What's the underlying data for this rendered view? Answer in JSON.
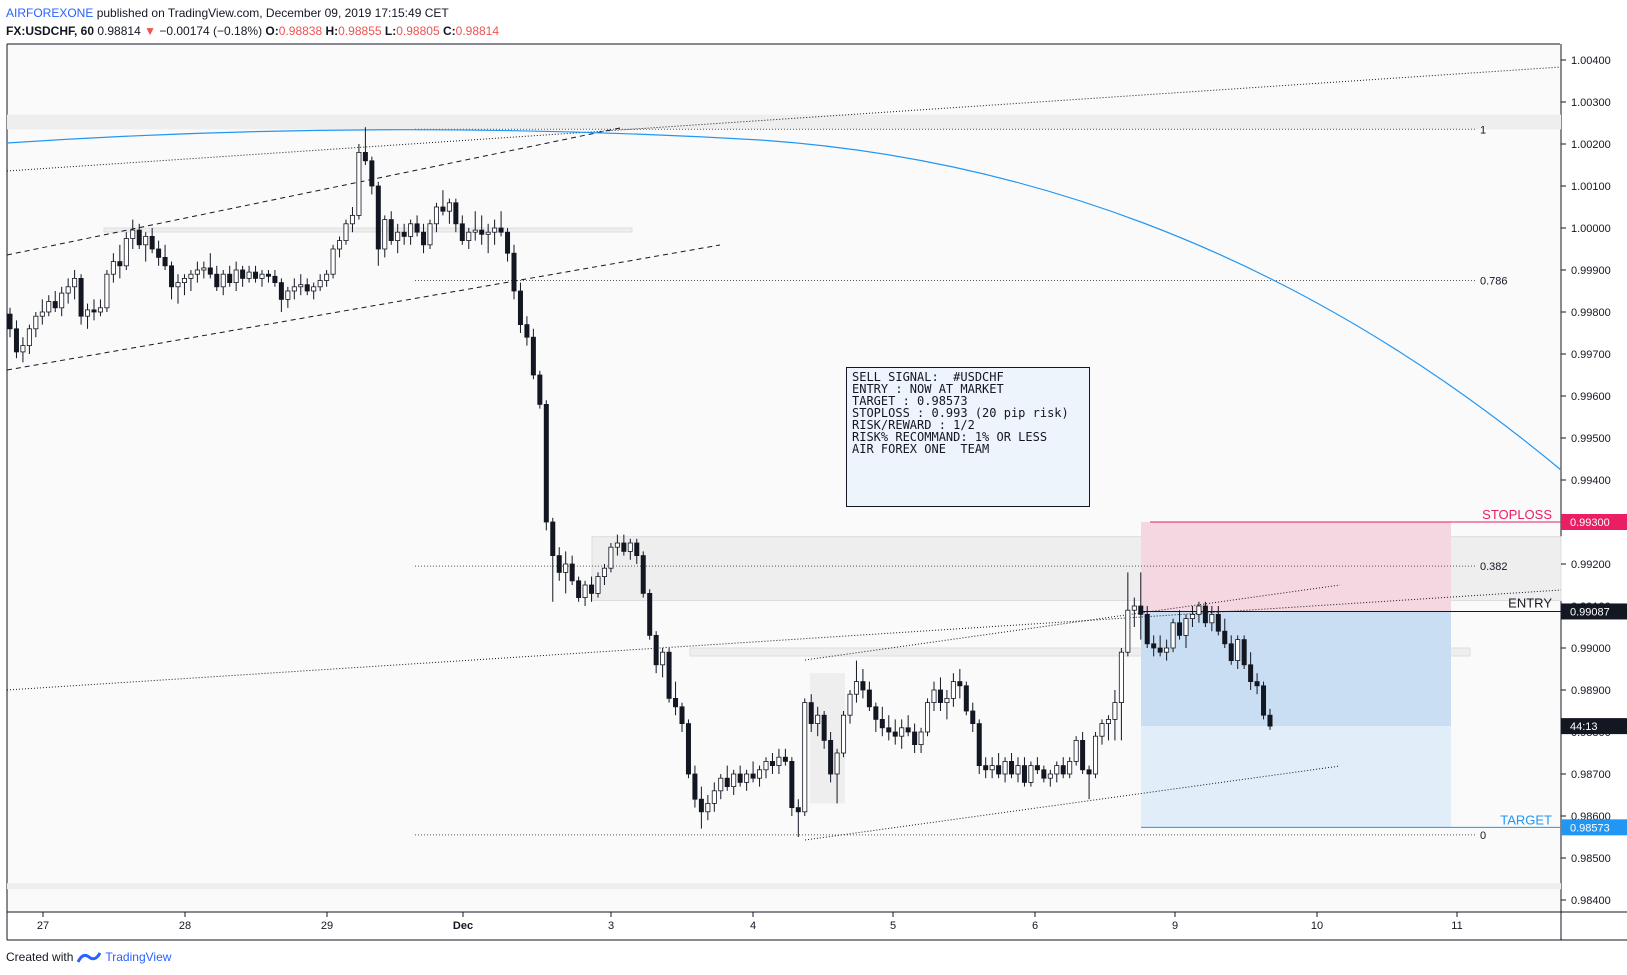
{
  "header": {
    "brand": "AIRFOREXONE",
    "published": "published on TradingView.com, December 09, 2019 17:15:49 CET",
    "symbol": "FX:USDCHF, 60",
    "last": "0.98814",
    "change_arrow": "▼",
    "change": "−0.00174 (−0.18%)",
    "o_label": "O:",
    "o": "0.98838",
    "h_label": "H:",
    "h": "0.98855",
    "l_label": "L:",
    "l": "0.98805",
    "c_label": "C:",
    "c": "0.98814"
  },
  "footer": {
    "created": "Created with",
    "tv": "TradingView"
  },
  "signal_box": {
    "lines": [
      "SELL SIGNAL:  #USDCHF",
      "",
      "ENTRY : NOW AT MARKET",
      "TARGET : 0.98573",
      "STOPLOSS : 0.993 (20 pip risk)",
      "",
      "RISK/REWARD : 1/2",
      "",
      "RISK% RECOMMAND: 1% OR LESS",
      "",
      "AIR FOREX ONE  TEAM"
    ]
  },
  "labels": {
    "stoploss": "STOPLOSS",
    "entry": "ENTRY",
    "target": "TARGET",
    "fib_1": "1",
    "fib_0786": "0.786",
    "fib_0382": "0.382",
    "fib_0": "0",
    "stoploss_price": "0.99300",
    "entry_price": "0.99087",
    "target_price": "0.98573",
    "countdown": "44:13"
  },
  "colors": {
    "bull": "#ffffff",
    "bear": "#131722",
    "stoploss": "#e91e63",
    "target": "#2196f3",
    "curve": "#2196f3",
    "risk_zone": "#f4d7e0",
    "reward_zone": "#d3e6f7"
  },
  "chart_data": {
    "type": "candlestick",
    "symbol": "FX:USDCHF",
    "timeframe": "60",
    "ylim": [
      0.984,
      1.0045
    ],
    "y_ticks": [
      "1.00400",
      "1.00300",
      "1.00200",
      "1.00100",
      "1.00000",
      "0.99900",
      "0.99800",
      "0.99700",
      "0.99600",
      "0.99500",
      "0.99400",
      "0.99300",
      "0.99200",
      "0.99100",
      "0.99000",
      "0.98900",
      "0.98800",
      "0.98700",
      "0.98600",
      "0.98500",
      "0.98400"
    ],
    "x_ticks": [
      "27",
      "28",
      "29",
      "Dec",
      "3",
      "4",
      "5",
      "6",
      "9",
      "10",
      "11"
    ],
    "levels": {
      "stoploss": 0.993,
      "entry": 0.99087,
      "target": 0.98573,
      "fib": [
        {
          "label": "1",
          "value": 1.00235
        },
        {
          "label": "0.786",
          "value": 0.99875
        },
        {
          "label": "0.382",
          "value": 0.99195
        },
        {
          "label": "0",
          "value": 0.98555
        }
      ]
    },
    "ohlc": [
      [
        0.99795,
        0.9981,
        0.9974,
        0.9976
      ],
      [
        0.9976,
        0.9978,
        0.9969,
        0.99705
      ],
      [
        0.99705,
        0.9974,
        0.9968,
        0.9972
      ],
      [
        0.9972,
        0.9977,
        0.997,
        0.9976
      ],
      [
        0.9976,
        0.998,
        0.9974,
        0.9979
      ],
      [
        0.9979,
        0.9983,
        0.9977,
        0.998
      ],
      [
        0.998,
        0.9984,
        0.9979,
        0.99825
      ],
      [
        0.99825,
        0.9985,
        0.998,
        0.9981
      ],
      [
        0.9981,
        0.9986,
        0.9979,
        0.99845
      ],
      [
        0.99845,
        0.9988,
        0.9982,
        0.9986
      ],
      [
        0.9986,
        0.999,
        0.9983,
        0.9988
      ],
      [
        0.9988,
        0.9989,
        0.9977,
        0.9979
      ],
      [
        0.9979,
        0.9982,
        0.9976,
        0.99805
      ],
      [
        0.99805,
        0.9983,
        0.9978,
        0.998
      ],
      [
        0.998,
        0.9983,
        0.9979,
        0.9981
      ],
      [
        0.9981,
        0.999,
        0.998,
        0.9989
      ],
      [
        0.9989,
        0.9994,
        0.9987,
        0.9992
      ],
      [
        0.9992,
        0.9996,
        0.9988,
        0.9991
      ],
      [
        0.9991,
        0.9999,
        0.999,
        0.99975
      ],
      [
        0.99975,
        1.0002,
        0.9995,
        0.99995
      ],
      [
        0.99995,
        1.0001,
        0.9995,
        0.9996
      ],
      [
        0.9996,
        0.9999,
        0.9992,
        0.9998
      ],
      [
        0.9998,
        1.0,
        0.9994,
        0.9995
      ],
      [
        0.9995,
        0.9997,
        0.9991,
        0.9993
      ],
      [
        0.9993,
        0.9996,
        0.999,
        0.9991
      ],
      [
        0.9991,
        0.9992,
        0.9983,
        0.9986
      ],
      [
        0.9986,
        0.9989,
        0.9982,
        0.9987
      ],
      [
        0.9987,
        0.9989,
        0.9984,
        0.9988
      ],
      [
        0.9988,
        0.999,
        0.9985,
        0.9989
      ],
      [
        0.9989,
        0.9992,
        0.9987,
        0.999
      ],
      [
        0.999,
        0.9992,
        0.9988,
        0.99905
      ],
      [
        0.99905,
        0.9994,
        0.9988,
        0.9989
      ],
      [
        0.9989,
        0.9991,
        0.9985,
        0.9986
      ],
      [
        0.9986,
        0.999,
        0.9984,
        0.9989
      ],
      [
        0.9989,
        0.9991,
        0.9986,
        0.9987
      ],
      [
        0.9987,
        0.9992,
        0.9985,
        0.999
      ],
      [
        0.999,
        0.9991,
        0.9986,
        0.9988
      ],
      [
        0.9988,
        0.9991,
        0.9987,
        0.99895
      ],
      [
        0.99895,
        0.9991,
        0.9987,
        0.9988
      ],
      [
        0.9988,
        0.999,
        0.9986,
        0.9989
      ],
      [
        0.9989,
        0.999,
        0.9987,
        0.99885
      ],
      [
        0.99885,
        0.999,
        0.9986,
        0.9987
      ],
      [
        0.9987,
        0.9988,
        0.998,
        0.9983
      ],
      [
        0.9983,
        0.9986,
        0.9981,
        0.9985
      ],
      [
        0.9985,
        0.9988,
        0.9983,
        0.9986
      ],
      [
        0.9986,
        0.9989,
        0.9984,
        0.99865
      ],
      [
        0.99865,
        0.9988,
        0.9984,
        0.9985
      ],
      [
        0.9985,
        0.9987,
        0.9983,
        0.9986
      ],
      [
        0.9986,
        0.9989,
        0.9985,
        0.99875
      ],
      [
        0.99875,
        0.999,
        0.9986,
        0.9989
      ],
      [
        0.9989,
        0.9996,
        0.9988,
        0.9995
      ],
      [
        0.9995,
        0.9998,
        0.9993,
        0.9997
      ],
      [
        0.9997,
        1.0002,
        0.9996,
        1.0001
      ],
      [
        1.0001,
        1.0005,
        0.9999,
        1.0003
      ],
      [
        1.0003,
        1.002,
        1.0002,
        1.0018
      ],
      [
        1.0018,
        1.0024,
        1.0015,
        1.0016
      ],
      [
        1.0016,
        1.0017,
        1.0008,
        1.001
      ],
      [
        1.001,
        1.0011,
        0.9991,
        0.9995
      ],
      [
        0.9995,
        1.0003,
        0.9993,
        1.0002
      ],
      [
        1.0002,
        1.0004,
        0.9996,
        0.9997
      ],
      [
        0.9997,
        1.0001,
        0.9994,
        0.9999
      ],
      [
        0.9999,
        1.0001,
        0.9996,
        0.9998
      ],
      [
        0.9998,
        1.0002,
        0.9996,
        1.0001
      ],
      [
        1.0001,
        1.0003,
        0.9998,
        0.9999
      ],
      [
        0.9999,
        1.0001,
        0.9994,
        0.9996
      ],
      [
        0.9996,
        1.0002,
        0.9995,
        1.0001
      ],
      [
        1.0001,
        1.0006,
        0.9999,
        1.0005
      ],
      [
        1.0005,
        1.0009,
        1.0003,
        1.0004
      ],
      [
        1.0004,
        1.0007,
        1.0001,
        1.0006
      ],
      [
        1.0006,
        1.0007,
        0.9999,
        1.0001
      ],
      [
        1.0001,
        1.0003,
        0.9996,
        0.9997
      ],
      [
        0.9997,
        1.0,
        0.9995,
        0.9999
      ],
      [
        0.9999,
        1.0004,
        0.9997,
        0.99995
      ],
      [
        0.99995,
        1.0003,
        0.9996,
        0.99985
      ],
      [
        0.99985,
        1.0001,
        0.9994,
        0.9999
      ],
      [
        0.9999,
        1.0002,
        0.9996,
        1.0
      ],
      [
        1.0,
        1.0004,
        0.9998,
        0.9999
      ],
      [
        0.9999,
        1.0,
        0.9992,
        0.9994
      ],
      [
        0.9994,
        0.9996,
        0.9983,
        0.9985
      ],
      [
        0.9985,
        0.9987,
        0.9975,
        0.9977
      ],
      [
        0.9977,
        0.9979,
        0.9972,
        0.9974
      ],
      [
        0.9974,
        0.9976,
        0.9964,
        0.9965
      ],
      [
        0.9965,
        0.9966,
        0.9957,
        0.9958
      ],
      [
        0.9958,
        0.9959,
        0.9928,
        0.993
      ],
      [
        0.993,
        0.9931,
        0.9911,
        0.9922
      ],
      [
        0.9922,
        0.9924,
        0.9916,
        0.9918
      ],
      [
        0.9918,
        0.9923,
        0.9913,
        0.992
      ],
      [
        0.992,
        0.9922,
        0.9915,
        0.9916
      ],
      [
        0.9916,
        0.9917,
        0.9911,
        0.9912
      ],
      [
        0.9912,
        0.9916,
        0.991,
        0.9915
      ],
      [
        0.9915,
        0.9917,
        0.9911,
        0.9913
      ],
      [
        0.9913,
        0.9918,
        0.9912,
        0.9917
      ],
      [
        0.9917,
        0.992,
        0.9915,
        0.9919
      ],
      [
        0.9919,
        0.9925,
        0.9918,
        0.9924
      ],
      [
        0.9924,
        0.9927,
        0.9922,
        0.9925
      ],
      [
        0.9925,
        0.9927,
        0.9922,
        0.9923
      ],
      [
        0.9923,
        0.9926,
        0.9921,
        0.9925
      ],
      [
        0.9925,
        0.9926,
        0.992,
        0.9922
      ],
      [
        0.9922,
        0.9923,
        0.9912,
        0.9913
      ],
      [
        0.9913,
        0.9914,
        0.9902,
        0.9903
      ],
      [
        0.9903,
        0.9904,
        0.9894,
        0.9896
      ],
      [
        0.9896,
        0.99,
        0.9893,
        0.9899
      ],
      [
        0.9899,
        0.99,
        0.9887,
        0.9888
      ],
      [
        0.9888,
        0.9892,
        0.9884,
        0.9886
      ],
      [
        0.9886,
        0.9887,
        0.988,
        0.9882
      ],
      [
        0.9882,
        0.9883,
        0.9869,
        0.987
      ],
      [
        0.987,
        0.9872,
        0.9862,
        0.9864
      ],
      [
        0.9864,
        0.9867,
        0.9857,
        0.9861
      ],
      [
        0.9861,
        0.9865,
        0.9859,
        0.9863
      ],
      [
        0.9863,
        0.9868,
        0.9861,
        0.9866
      ],
      [
        0.9866,
        0.987,
        0.9864,
        0.9869
      ],
      [
        0.9869,
        0.9872,
        0.9866,
        0.9867
      ],
      [
        0.9867,
        0.9871,
        0.9865,
        0.987
      ],
      [
        0.987,
        0.9872,
        0.9867,
        0.9868
      ],
      [
        0.9868,
        0.9871,
        0.9866,
        0.987
      ],
      [
        0.987,
        0.9873,
        0.9868,
        0.9869
      ],
      [
        0.9869,
        0.9872,
        0.9867,
        0.9871
      ],
      [
        0.9871,
        0.9874,
        0.9869,
        0.9873
      ],
      [
        0.9873,
        0.9875,
        0.987,
        0.9872
      ],
      [
        0.9872,
        0.9876,
        0.987,
        0.9874
      ],
      [
        0.9874,
        0.9876,
        0.9872,
        0.9873
      ],
      [
        0.9873,
        0.9874,
        0.986,
        0.9862
      ],
      [
        0.9862,
        0.9864,
        0.9855,
        0.9861
      ],
      [
        0.9861,
        0.9888,
        0.986,
        0.9887
      ],
      [
        0.9887,
        0.9889,
        0.988,
        0.9882
      ],
      [
        0.9882,
        0.9886,
        0.9879,
        0.9884
      ],
      [
        0.9884,
        0.9885,
        0.9876,
        0.9878
      ],
      [
        0.9878,
        0.988,
        0.9868,
        0.987
      ],
      [
        0.987,
        0.9876,
        0.9863,
        0.9875
      ],
      [
        0.9875,
        0.9885,
        0.9874,
        0.9884
      ],
      [
        0.9884,
        0.989,
        0.9882,
        0.9889
      ],
      [
        0.9889,
        0.9897,
        0.9887,
        0.9892
      ],
      [
        0.9892,
        0.9895,
        0.9888,
        0.989
      ],
      [
        0.989,
        0.9892,
        0.9885,
        0.9886
      ],
      [
        0.9886,
        0.9887,
        0.988,
        0.9883
      ],
      [
        0.9883,
        0.9886,
        0.9879,
        0.9881
      ],
      [
        0.9881,
        0.9884,
        0.9878,
        0.988
      ],
      [
        0.988,
        0.9883,
        0.9877,
        0.9879
      ],
      [
        0.9879,
        0.9883,
        0.9876,
        0.9881
      ],
      [
        0.9881,
        0.9884,
        0.9879,
        0.988
      ],
      [
        0.988,
        0.9882,
        0.9875,
        0.9877
      ],
      [
        0.9877,
        0.9881,
        0.9875,
        0.988
      ],
      [
        0.988,
        0.9888,
        0.9879,
        0.9887
      ],
      [
        0.9887,
        0.9892,
        0.9885,
        0.989
      ],
      [
        0.989,
        0.9893,
        0.9885,
        0.9887
      ],
      [
        0.9887,
        0.989,
        0.9883,
        0.9888
      ],
      [
        0.9888,
        0.9894,
        0.9886,
        0.9892
      ],
      [
        0.9892,
        0.9895,
        0.9888,
        0.9891
      ],
      [
        0.9891,
        0.9892,
        0.9884,
        0.9885
      ],
      [
        0.9885,
        0.9887,
        0.988,
        0.9882
      ],
      [
        0.9882,
        0.9883,
        0.987,
        0.9872
      ],
      [
        0.9872,
        0.9874,
        0.9869,
        0.9871
      ],
      [
        0.9871,
        0.9874,
        0.9869,
        0.9872
      ],
      [
        0.9872,
        0.9875,
        0.9869,
        0.987
      ],
      [
        0.987,
        0.9874,
        0.9868,
        0.9873
      ],
      [
        0.9873,
        0.9875,
        0.9869,
        0.987
      ],
      [
        0.987,
        0.9874,
        0.9868,
        0.9872
      ],
      [
        0.9872,
        0.9874,
        0.9867,
        0.9868
      ],
      [
        0.9868,
        0.9873,
        0.9867,
        0.9872
      ],
      [
        0.9872,
        0.9874,
        0.987,
        0.9871
      ],
      [
        0.9871,
        0.9872,
        0.9868,
        0.9869
      ],
      [
        0.9869,
        0.9871,
        0.9867,
        0.987
      ],
      [
        0.987,
        0.9873,
        0.9868,
        0.9872
      ],
      [
        0.9872,
        0.9874,
        0.9869,
        0.987
      ],
      [
        0.987,
        0.9874,
        0.9869,
        0.9873
      ],
      [
        0.9873,
        0.9879,
        0.9872,
        0.9878
      ],
      [
        0.9878,
        0.988,
        0.987,
        0.9871
      ],
      [
        0.9871,
        0.9872,
        0.9864,
        0.987
      ],
      [
        0.987,
        0.988,
        0.9869,
        0.9879
      ],
      [
        0.9879,
        0.9883,
        0.9877,
        0.9882
      ],
      [
        0.9882,
        0.9884,
        0.9878,
        0.9883
      ],
      [
        0.9883,
        0.989,
        0.9878,
        0.9887
      ],
      [
        0.9887,
        0.99,
        0.9878,
        0.9899
      ],
      [
        0.9899,
        0.9918,
        0.9898,
        0.9909
      ],
      [
        0.9909,
        0.9912,
        0.9905,
        0.991
      ],
      [
        0.991,
        0.9918,
        0.9902,
        0.9908
      ],
      [
        0.9908,
        0.991,
        0.99,
        0.9901
      ],
      [
        0.9901,
        0.9903,
        0.9898,
        0.99
      ],
      [
        0.99,
        0.9903,
        0.9898,
        0.9899
      ],
      [
        0.9899,
        0.9902,
        0.9897,
        0.99
      ],
      [
        0.99,
        0.9907,
        0.9899,
        0.9906
      ],
      [
        0.9906,
        0.9909,
        0.9902,
        0.9903
      ],
      [
        0.9903,
        0.9908,
        0.99,
        0.9907
      ],
      [
        0.9907,
        0.991,
        0.9905,
        0.9908
      ],
      [
        0.9908,
        0.9911,
        0.9906,
        0.991
      ],
      [
        0.991,
        0.9911,
        0.9905,
        0.9906
      ],
      [
        0.9906,
        0.991,
        0.9904,
        0.9908
      ],
      [
        0.9908,
        0.991,
        0.9903,
        0.9904
      ],
      [
        0.9904,
        0.9907,
        0.99,
        0.9901
      ],
      [
        0.9901,
        0.9903,
        0.9896,
        0.9897
      ],
      [
        0.9897,
        0.9903,
        0.9895,
        0.9902
      ],
      [
        0.9902,
        0.9903,
        0.9895,
        0.9896
      ],
      [
        0.9896,
        0.9899,
        0.989,
        0.9892
      ],
      [
        0.9892,
        0.9894,
        0.9889,
        0.9891
      ],
      [
        0.9891,
        0.9892,
        0.9883,
        0.9884
      ],
      [
        0.9884,
        0.98855,
        0.98805,
        0.98814
      ]
    ]
  }
}
